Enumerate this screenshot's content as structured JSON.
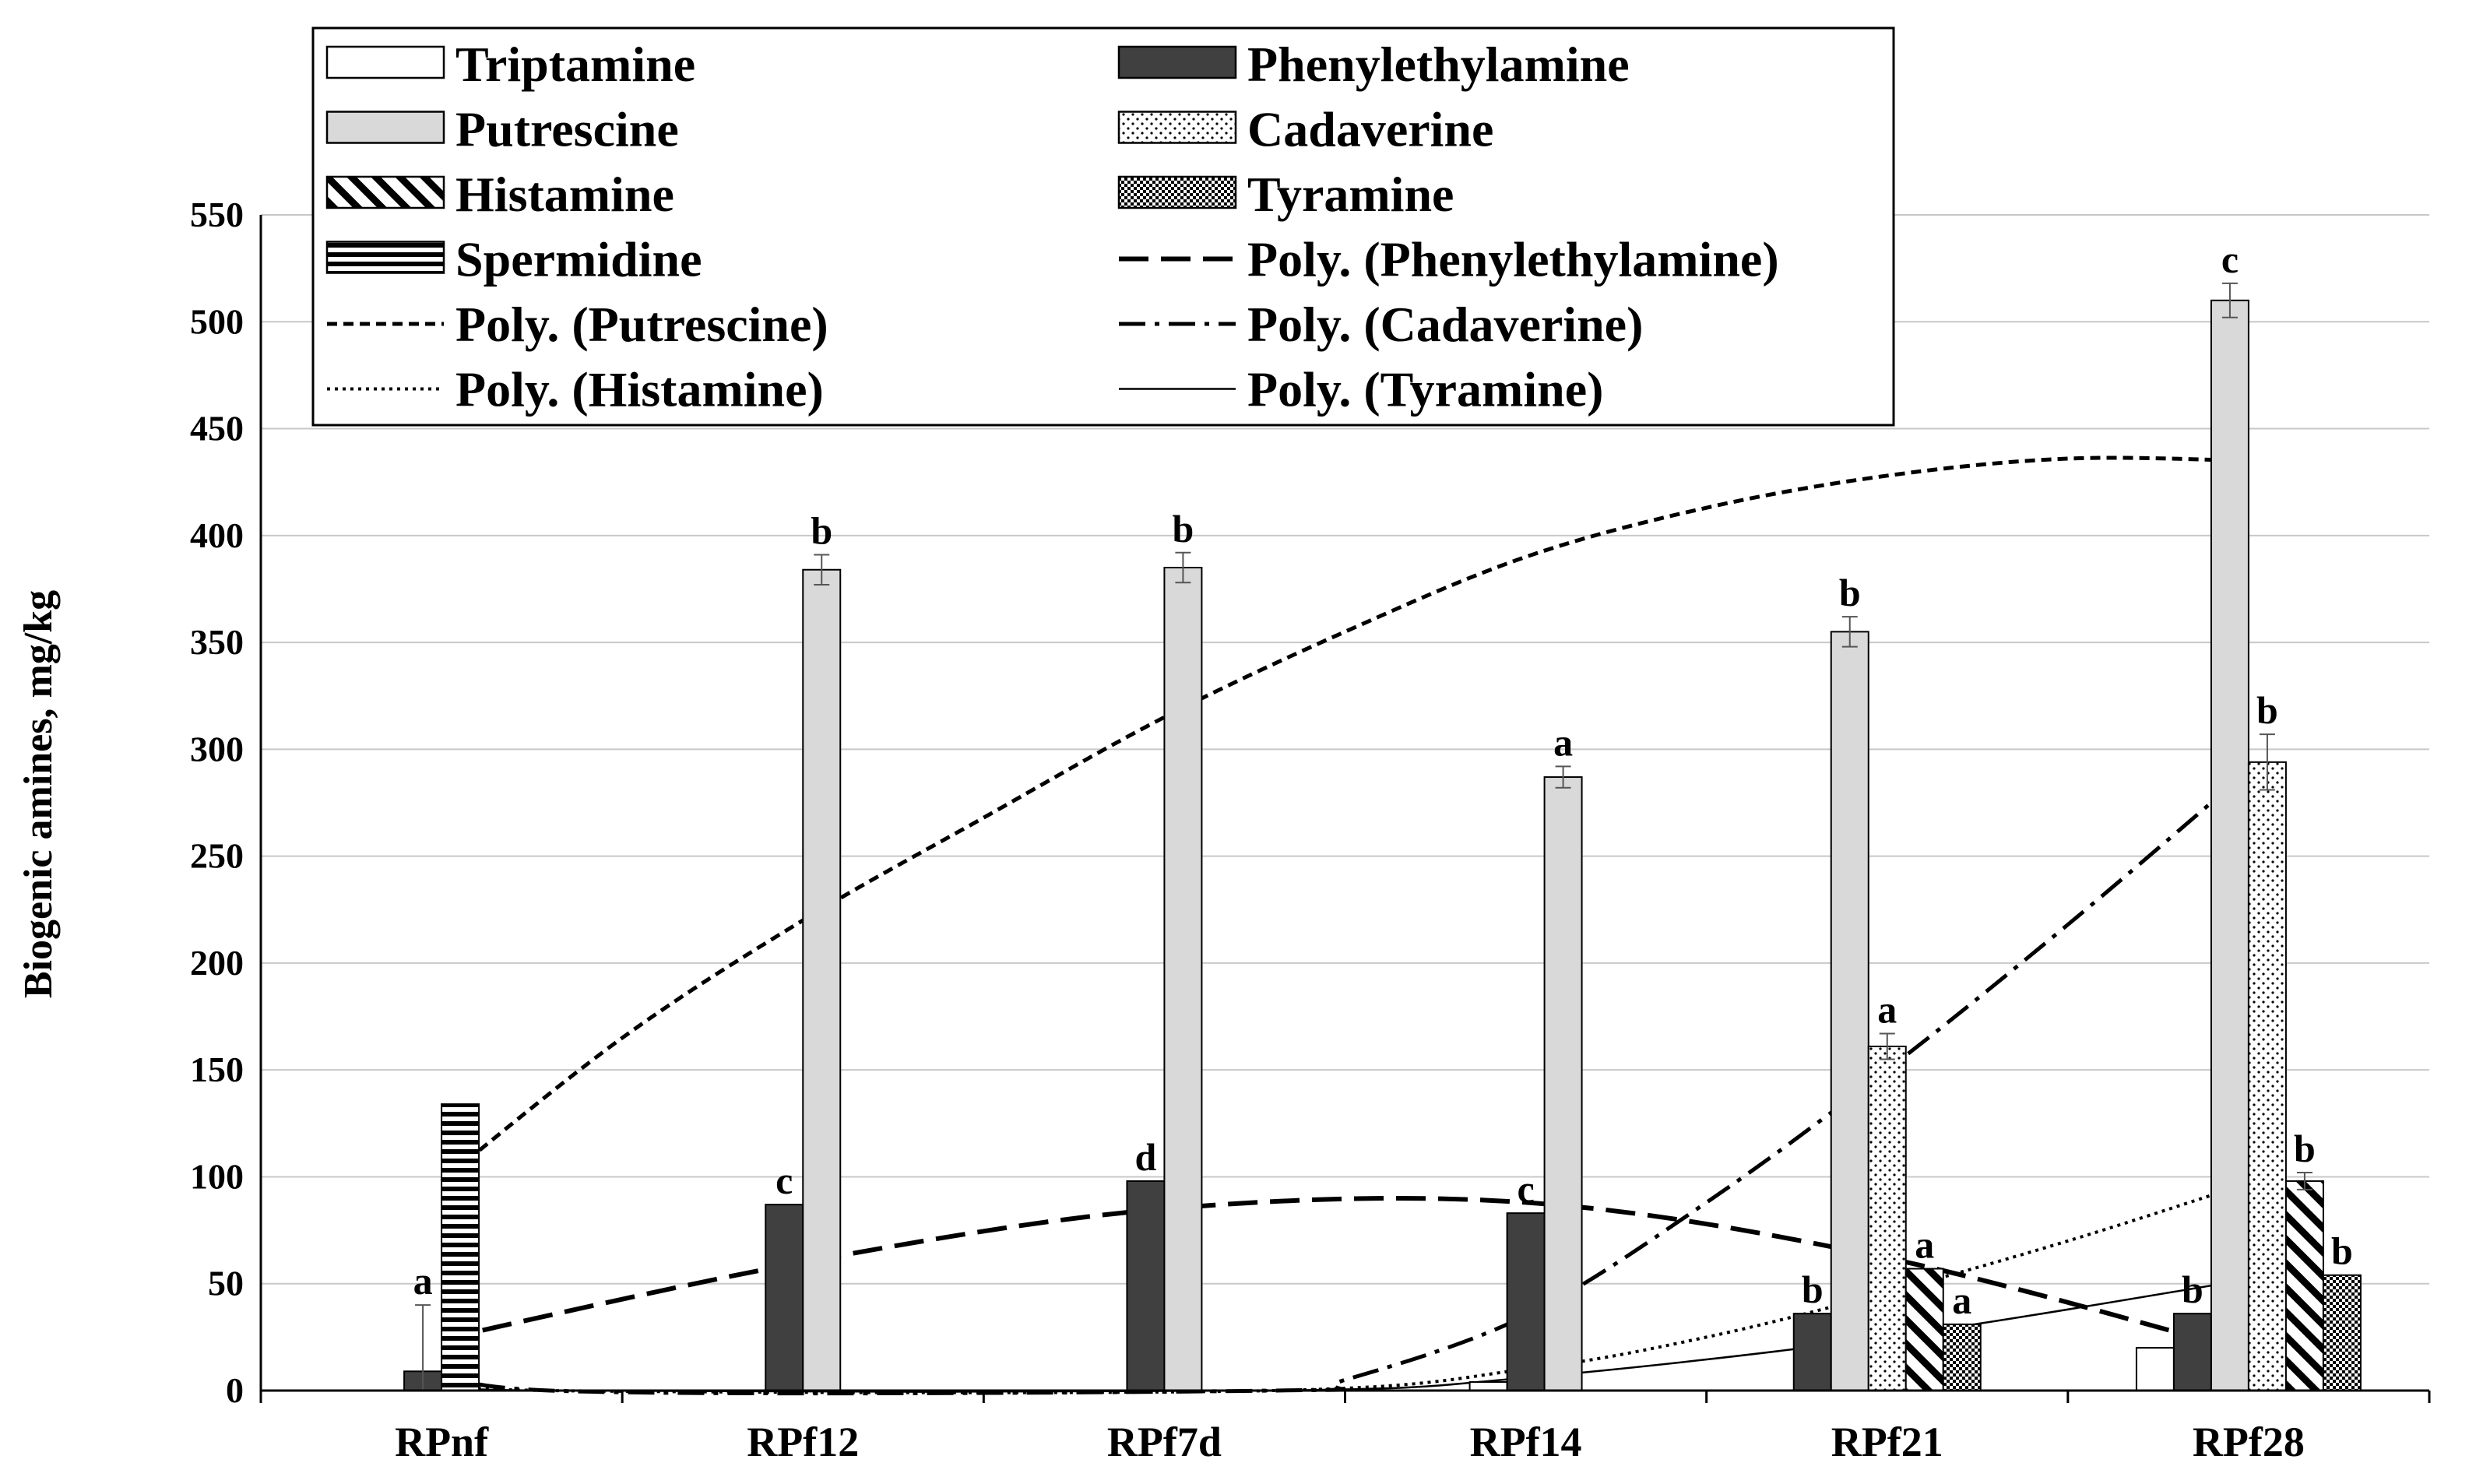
{
  "chart_data": {
    "type": "bar",
    "title": "",
    "xlabel": "",
    "ylabel": "Biogenic amines, mg/kg",
    "ylim": [
      0,
      550
    ],
    "ytick_step": 50,
    "ytick_labels": [
      "0",
      "50",
      "100",
      "150",
      "200",
      "250",
      "300",
      "350",
      "400",
      "450",
      "500",
      "550"
    ],
    "grid": true,
    "legend_position": "top",
    "categories": [
      "RPnf",
      "RPf12",
      "RPf7d",
      "RPf14",
      "RPf21",
      "RPf28"
    ],
    "series": [
      {
        "name": "Triptamine",
        "pattern": "white",
        "values": [
          0,
          0,
          0,
          4,
          0,
          20
        ],
        "errors": [
          0,
          0,
          0,
          0,
          0,
          0
        ],
        "labels": [
          "",
          "",
          "",
          "",
          "",
          ""
        ]
      },
      {
        "name": "Phenylethylamine",
        "pattern": "dark",
        "values": [
          9,
          87,
          98,
          83,
          36,
          36
        ],
        "errors": [
          31,
          0,
          0,
          0,
          0,
          0
        ],
        "labels": [
          "a",
          "c",
          "d",
          "c",
          "b",
          "b"
        ]
      },
      {
        "name": "Putrescine",
        "pattern": "lightgray",
        "values": [
          0,
          384,
          385,
          287,
          355,
          510
        ],
        "errors": [
          0,
          7,
          7,
          5,
          7,
          8
        ],
        "labels": [
          "",
          "b",
          "b",
          "a",
          "b",
          "c"
        ]
      },
      {
        "name": "Cadaverine",
        "pattern": "dots",
        "values": [
          0,
          0,
          0,
          0,
          161,
          294
        ],
        "errors": [
          0,
          0,
          0,
          0,
          6,
          13
        ],
        "labels": [
          "",
          "",
          "",
          "",
          "a",
          "b"
        ]
      },
      {
        "name": "Histamine",
        "pattern": "diagonal",
        "values": [
          0,
          0,
          0,
          0,
          57,
          98
        ],
        "errors": [
          0,
          0,
          0,
          0,
          0,
          4
        ],
        "labels": [
          "",
          "",
          "",
          "",
          "a",
          "b"
        ]
      },
      {
        "name": "Tyramine",
        "pattern": "checker",
        "values": [
          0,
          0,
          0,
          0,
          31,
          54
        ],
        "errors": [
          0,
          0,
          0,
          0,
          0,
          0
        ],
        "labels": [
          "",
          "",
          "",
          "",
          "a",
          "b"
        ]
      },
      {
        "name": "Spermidine",
        "pattern": "horizontal",
        "values": [
          134,
          0,
          0,
          0,
          0,
          0
        ],
        "errors": [
          0,
          0,
          0,
          0,
          0,
          0
        ],
        "labels": [
          "",
          "",
          "",
          "",
          "",
          ""
        ]
      }
    ],
    "trendlines": [
      {
        "name": "Poly. (Phenylethylamine)",
        "style": "longdash",
        "x": [
          0,
          1,
          2,
          3,
          4,
          5
        ],
        "y": [
          24,
          60,
          85,
          88,
          62,
          18
        ]
      },
      {
        "name": "Poly. (Putrescine)",
        "style": "shortdash",
        "x": [
          0,
          0.5,
          1,
          1.5,
          2,
          2.5,
          3,
          3.5,
          4,
          4.5,
          5
        ],
        "y": [
          98,
          165,
          220,
          268,
          315,
          355,
          390,
          413,
          428,
          436,
          435
        ]
      },
      {
        "name": "Poly. (Cadaverine)",
        "style": "dashdot",
        "x": [
          0,
          0.3,
          2.3,
          2.5,
          3,
          3.5,
          4,
          4.5,
          5
        ],
        "y": [
          15,
          0,
          0,
          5,
          35,
          88,
          150,
          218,
          290
        ]
      },
      {
        "name": "Poly. (Histamine)",
        "style": "dotted",
        "x": [
          0,
          0.3,
          2.3,
          3,
          3.5,
          4,
          4.5,
          5
        ],
        "y": [
          5,
          0,
          0,
          10,
          25,
          46,
          70,
          97
        ]
      },
      {
        "name": "Poly. (Tyramine)",
        "style": "solid",
        "x": [
          0,
          0.3,
          2.3,
          3,
          4,
          5
        ],
        "y": [
          3,
          0,
          0,
          6,
          25,
          52
        ]
      }
    ],
    "legend": [
      {
        "label": "Triptamine",
        "kind": "swatch",
        "pattern": "white"
      },
      {
        "label": "Phenylethylamine",
        "kind": "swatch",
        "pattern": "dark"
      },
      {
        "label": "Putrescine",
        "kind": "swatch",
        "pattern": "lightgray"
      },
      {
        "label": "Cadaverine",
        "kind": "swatch",
        "pattern": "dots"
      },
      {
        "label": "Histamine",
        "kind": "swatch",
        "pattern": "diagonal"
      },
      {
        "label": "Tyramine",
        "kind": "swatch",
        "pattern": "checker"
      },
      {
        "label": "Spermidine",
        "kind": "swatch",
        "pattern": "horizontal"
      },
      {
        "label": "Poly. (Phenylethylamine)",
        "kind": "line",
        "style": "longdash"
      },
      {
        "label": "Poly. (Putrescine)",
        "kind": "line",
        "style": "shortdash"
      },
      {
        "label": "Poly. (Cadaverine)",
        "kind": "line",
        "style": "dashdot"
      },
      {
        "label": "Poly. (Histamine)",
        "kind": "line",
        "style": "dotted"
      },
      {
        "label": "Poly. (Tyramine)",
        "kind": "line",
        "style": "solid"
      }
    ]
  }
}
